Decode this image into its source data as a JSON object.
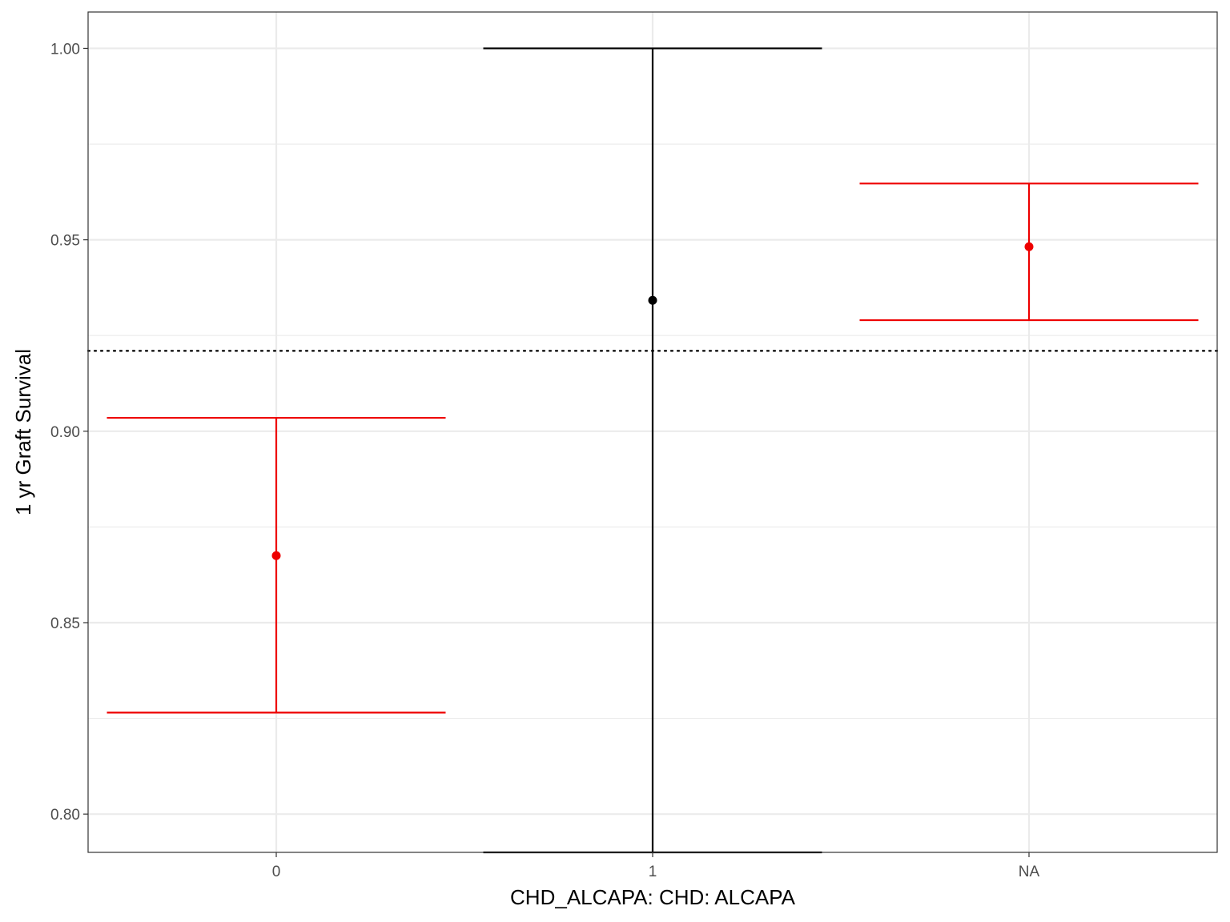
{
  "chart_data": {
    "type": "errorbar",
    "title": "",
    "xlabel": "CHD_ALCAPA: CHD: ALCAPA",
    "ylabel": "1 yr Graft Survival",
    "categories": [
      "0",
      "1",
      "NA"
    ],
    "points": [
      {
        "category": "0",
        "estimate": 0.8675,
        "lower": 0.8265,
        "upper": 0.9035,
        "color": "#ee0000"
      },
      {
        "category": "1",
        "estimate": 0.9342,
        "lower": 0.79,
        "upper": 1.0,
        "color": "#000000"
      },
      {
        "category": "NA",
        "estimate": 0.9482,
        "lower": 0.929,
        "upper": 0.9647,
        "color": "#ee0000"
      }
    ],
    "reference_line": {
      "y": 0.921,
      "style": "dotted",
      "color": "#000000"
    },
    "ylim": [
      0.79,
      1.0095
    ],
    "y_ticks": [
      0.8,
      0.85,
      0.9,
      0.95,
      1.0
    ],
    "y_tick_labels": [
      "0.80",
      "0.85",
      "0.90",
      "0.95",
      "1.00"
    ],
    "grid": true,
    "legend": "none"
  }
}
